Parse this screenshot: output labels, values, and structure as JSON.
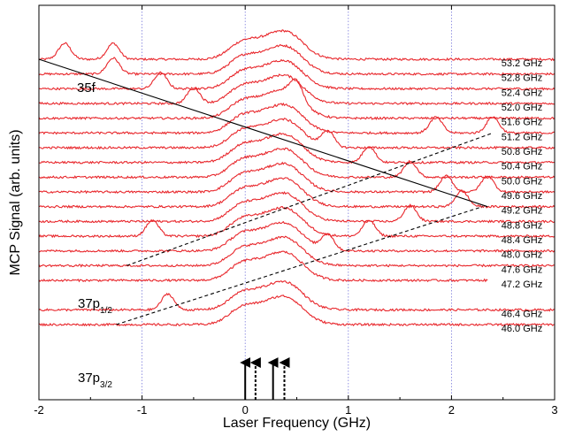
{
  "chart_data": {
    "type": "line",
    "xlabel": "Laser Frequency (GHz)",
    "ylabel": "MCP Signal (arb. units)",
    "xlim": [
      -2,
      3
    ],
    "xticks": [
      "-2",
      "-1",
      "0",
      "1",
      "2",
      "3"
    ],
    "grid": "vertical dotted lines at x = -1, 0, 1, 2",
    "colors": {
      "traces": "#e8262b",
      "grid": "#7b7bdc",
      "axes": "#000000",
      "guides": "#000000"
    },
    "series": [
      {
        "name": "53.2 GHz",
        "field_ghz": 53.2,
        "extra_peaks_x": [
          -1.75,
          -1.28
        ]
      },
      {
        "name": "52.8 GHz",
        "field_ghz": 52.8,
        "extra_peaks_x": [
          -1.28
        ]
      },
      {
        "name": "52.4 GHz",
        "field_ghz": 52.4,
        "extra_peaks_x": [
          -0.82
        ]
      },
      {
        "name": "52.0 GHz",
        "field_ghz": 52.0,
        "extra_peaks_x": [
          -0.5
        ]
      },
      {
        "name": "51.6 GHz",
        "field_ghz": 51.6,
        "extra_peaks_x": [
          0.5
        ]
      },
      {
        "name": "51.2 GHz",
        "field_ghz": 51.2,
        "extra_peaks_x": [
          1.85,
          2.4
        ]
      },
      {
        "name": "50.8 GHz",
        "field_ghz": 50.8,
        "extra_peaks_x": [
          0.8
        ]
      },
      {
        "name": "50.4 GHz",
        "field_ghz": 50.4,
        "extra_peaks_x": [
          1.2
        ]
      },
      {
        "name": "50.0 GHz",
        "field_ghz": 50.0,
        "extra_peaks_x": [
          1.6
        ]
      },
      {
        "name": "49.6 GHz",
        "field_ghz": 49.6,
        "extra_peaks_x": [
          1.95,
          2.35
        ]
      },
      {
        "name": "49.2 GHz",
        "field_ghz": 49.2,
        "extra_peaks_x": [
          2.1
        ]
      },
      {
        "name": "48.8 GHz",
        "field_ghz": 48.8,
        "extra_peaks_x": [
          1.6
        ]
      },
      {
        "name": "48.4 GHz",
        "field_ghz": 48.4,
        "extra_peaks_x": [
          1.2,
          -0.9
        ]
      },
      {
        "name": "48.0 GHz",
        "field_ghz": 48.0,
        "extra_peaks_x": [
          0.8
        ]
      },
      {
        "name": "47.6 GHz",
        "field_ghz": 47.6,
        "extra_peaks_x": []
      },
      {
        "name": "47.2 GHz",
        "field_ghz": 47.2,
        "extra_peaks_x": []
      },
      {
        "name": "46.4 GHz",
        "field_ghz": 46.4,
        "extra_peaks_x": [
          -0.75
        ]
      },
      {
        "name": "46.0 GHz",
        "field_ghz": 46.0,
        "extra_peaks_x": []
      }
    ],
    "annotations": [
      {
        "text": "35f",
        "kind": "label"
      },
      {
        "text": "37p",
        "sub": "1/2",
        "kind": "label"
      },
      {
        "text": "37p",
        "sub": "3/2",
        "kind": "label"
      }
    ],
    "guide_lines": [
      {
        "style": "solid",
        "from": [
          -2.0,
          53.2
        ],
        "to": [
          2.35,
          49.2
        ]
      },
      {
        "style": "dashed",
        "from": [
          -1.15,
          47.6
        ],
        "to": [
          2.4,
          51.2
        ]
      },
      {
        "style": "dashed",
        "from": [
          -1.25,
          46.0
        ],
        "to": [
          2.3,
          49.2
        ]
      }
    ],
    "arrows": [
      {
        "x": 0.0,
        "style": "solid"
      },
      {
        "x": 0.1,
        "style": "dashed"
      },
      {
        "x": 0.27,
        "style": "solid"
      },
      {
        "x": 0.38,
        "style": "dashed"
      }
    ]
  }
}
